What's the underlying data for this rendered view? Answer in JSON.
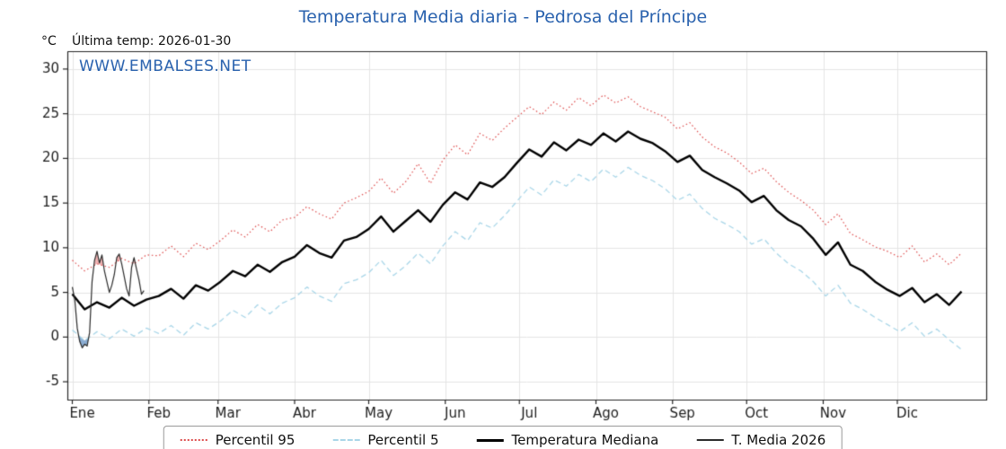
{
  "title": "Temperatura Media diaria - Pedrosa del Príncipe",
  "y_unit_label": "°C",
  "last_temp_label": "Última temp: 2026-01-30",
  "watermark": "WWW.EMBALSES.NET",
  "colors": {
    "title_blue": "#2a62ae",
    "grid": "#e4e4e4",
    "axis": "#262626",
    "fill_above_p95": "rgba(220,85,85,0.45)",
    "fill_below_p5": "rgba(62,118,180,0.6)"
  },
  "chart_data": {
    "type": "line",
    "title": "Temperatura Media diaria - Pedrosa del Príncipe",
    "xlabel": "",
    "ylabel": "°C",
    "xlim": [
      -2,
      370
    ],
    "ylim": [
      -7,
      32
    ],
    "yticks": [
      -5,
      0,
      5,
      10,
      15,
      20,
      25,
      30
    ],
    "months": [
      "Ene",
      "Feb",
      "Mar",
      "Abr",
      "May",
      "Jun",
      "Jul",
      "Ago",
      "Sep",
      "Oct",
      "Nov",
      "Dic"
    ],
    "month_start_days": [
      0,
      31,
      59,
      90,
      120,
      151,
      181,
      212,
      243,
      273,
      304,
      334
    ],
    "grid": true,
    "legend_position": "bottom",
    "series": [
      {
        "name": "Percentil 95",
        "color": "#dd4b4b",
        "style": "dotted",
        "width": 1.2,
        "x_start": 0,
        "x_step": 5,
        "values": [
          8.6,
          7.4,
          8.2,
          7.8,
          8.8,
          8.2,
          9.2,
          9.1,
          10.2,
          9.0,
          10.5,
          9.8,
          10.8,
          12.0,
          11.2,
          12.6,
          11.8,
          13.1,
          13.4,
          14.6,
          13.8,
          13.2,
          15.0,
          15.6,
          16.3,
          17.8,
          16.1,
          17.4,
          19.4,
          17.2,
          19.8,
          21.5,
          20.4,
          22.8,
          22.0,
          23.4,
          24.6,
          25.8,
          24.9,
          26.3,
          25.4,
          26.8,
          25.9,
          27.1,
          26.2,
          26.9,
          25.8,
          25.2,
          24.6,
          23.3,
          24.0,
          22.4,
          21.3,
          20.6,
          19.6,
          18.3,
          18.9,
          17.4,
          16.2,
          15.3,
          14.2,
          12.6,
          13.8,
          11.6,
          10.9,
          10.1,
          9.6,
          8.9,
          10.2,
          8.4,
          9.3,
          8.1,
          9.4
        ]
      },
      {
        "name": "Percentil 5",
        "color": "#a9d6e8",
        "style": "dashed",
        "width": 1.3,
        "x_start": 0,
        "x_step": 5,
        "values": [
          0.8,
          -0.4,
          0.6,
          -0.2,
          0.9,
          0.1,
          1.0,
          0.4,
          1.3,
          0.2,
          1.6,
          0.9,
          1.8,
          3.0,
          2.2,
          3.6,
          2.6,
          3.8,
          4.4,
          5.6,
          4.6,
          4.0,
          6.0,
          6.4,
          7.2,
          8.6,
          6.9,
          8.0,
          9.4,
          8.2,
          10.2,
          11.8,
          10.8,
          12.8,
          12.2,
          13.6,
          15.2,
          16.8,
          15.9,
          17.6,
          16.9,
          18.2,
          17.4,
          18.8,
          17.9,
          19.0,
          18.1,
          17.5,
          16.6,
          15.3,
          16.0,
          14.4,
          13.3,
          12.6,
          11.8,
          10.4,
          11.0,
          9.4,
          8.2,
          7.4,
          6.2,
          4.6,
          5.8,
          3.8,
          3.1,
          2.2,
          1.4,
          0.6,
          1.6,
          0.1,
          0.9,
          -0.3,
          -1.4
        ]
      },
      {
        "name": "Temperatura Mediana",
        "color": "#000000",
        "style": "solid",
        "width": 2.4,
        "x_start": 0,
        "x_step": 5,
        "values": [
          4.8,
          3.1,
          3.9,
          3.3,
          4.4,
          3.5,
          4.2,
          4.6,
          5.4,
          4.3,
          5.8,
          5.2,
          6.2,
          7.4,
          6.8,
          8.1,
          7.3,
          8.4,
          9.0,
          10.3,
          9.4,
          8.9,
          10.8,
          11.2,
          12.1,
          13.5,
          11.8,
          13.0,
          14.2,
          12.9,
          14.8,
          16.2,
          15.4,
          17.3,
          16.8,
          17.9,
          19.5,
          21.0,
          20.2,
          21.8,
          20.9,
          22.1,
          21.5,
          22.8,
          21.9,
          23.0,
          22.2,
          21.7,
          20.8,
          19.6,
          20.3,
          18.7,
          17.9,
          17.2,
          16.4,
          15.1,
          15.8,
          14.2,
          13.1,
          12.4,
          11.0,
          9.2,
          10.6,
          8.1,
          7.4,
          6.2,
          5.3,
          4.6,
          5.5,
          3.9,
          4.8,
          3.6,
          5.1
        ]
      },
      {
        "name": "T. Media 2026",
        "color": "#2b2b2b",
        "style": "solid",
        "width": 1.2,
        "x_start": 0,
        "x_step": 1,
        "values": [
          5.6,
          4.2,
          1.0,
          -0.5,
          -1.2,
          -0.8,
          -1.0,
          0.5,
          6.2,
          8.6,
          9.6,
          8.3,
          9.2,
          7.4,
          6.2,
          5.0,
          5.8,
          7.0,
          8.9,
          9.3,
          8.2,
          6.8,
          5.4,
          4.6,
          7.8,
          8.9,
          7.6,
          6.4,
          4.8,
          5.2
        ]
      }
    ],
    "fills": [
      {
        "series": "T. Media 2026",
        "compare": "Percentil 95",
        "mode": "above",
        "color": "rgba(220,85,85,0.45)"
      },
      {
        "series": "T. Media 2026",
        "compare": "Percentil 5",
        "mode": "below",
        "color": "rgba(62,118,180,0.6)"
      }
    ]
  }
}
